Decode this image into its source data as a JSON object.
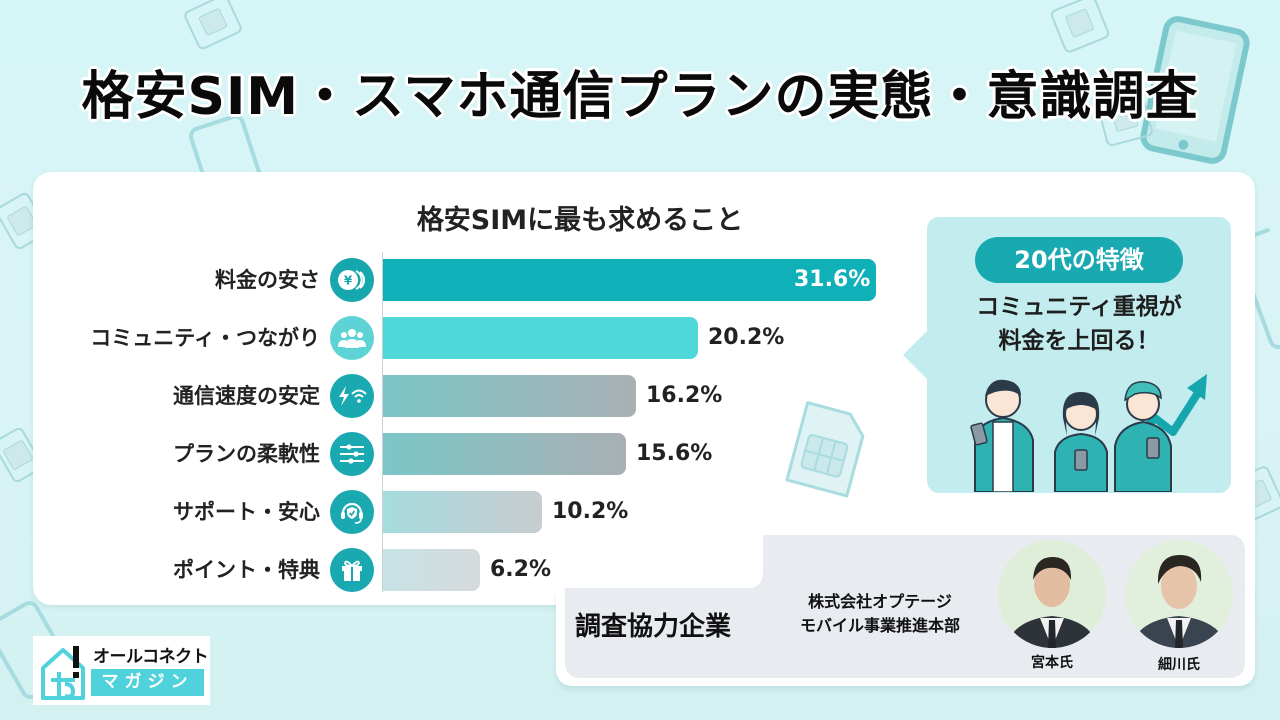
{
  "header": {
    "title": "格安SIM・スマホ通信プランの実態・意識調査"
  },
  "chart": {
    "title": "格安SIMに最も求めること",
    "rows": [
      {
        "label": "料金の安さ",
        "value_label": "31.6%",
        "icon": "yen-coin-icon"
      },
      {
        "label": "コミュニティ・つながり",
        "value_label": "20.2%",
        "icon": "people-group-icon"
      },
      {
        "label": "通信速度の安定",
        "value_label": "16.2%",
        "icon": "lightning-wifi-icon"
      },
      {
        "label": "プランの柔軟性",
        "value_label": "15.6%",
        "icon": "sliders-icon"
      },
      {
        "label": "サポート・安心",
        "value_label": "10.2%",
        "icon": "headset-shield-icon"
      },
      {
        "label": "ポイント・特典",
        "value_label": "6.2%",
        "icon": "gift-icon"
      }
    ]
  },
  "chart_data": {
    "type": "bar",
    "orientation": "horizontal",
    "title": "格安SIMに最も求めること",
    "categories": [
      "料金の安さ",
      "コミュニティ・つながり",
      "通信速度の安定",
      "プランの柔軟性",
      "サポート・安心",
      "ポイント・特典"
    ],
    "values": [
      31.6,
      20.2,
      16.2,
      15.6,
      10.2,
      6.2
    ],
    "unit": "%",
    "xlabel": "",
    "ylabel": "",
    "grid": false,
    "legend": null
  },
  "callout": {
    "badge": "20代の特徴",
    "line1": "コミュニティ重視が",
    "line2": "料金を上回る！"
  },
  "company": {
    "label": "調査協力企業",
    "name_line1": "株式会社オプテージ",
    "name_line2": "モバイル事業推進本部",
    "people": [
      {
        "name": "宮本氏"
      },
      {
        "name": "細川氏"
      }
    ]
  },
  "logo": {
    "top": "オールコネクト",
    "sub": "マガジン"
  },
  "colors": {
    "accent": "#19a9b1",
    "bar1": "#0fb0b8",
    "bar2": "#4fd8da",
    "callout_bg": "#c3ecee",
    "company_bg": "#e8ecf1",
    "logo_sub": "#4fd2dc"
  }
}
